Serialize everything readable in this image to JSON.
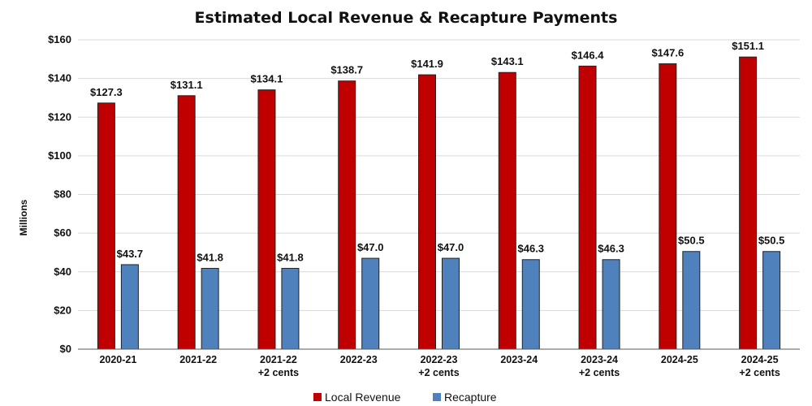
{
  "chart_data": {
    "type": "bar",
    "title": "Estimated Local Revenue & Recapture Payments",
    "ylabel": "Millions",
    "xlabel": "",
    "ylim": [
      0,
      160
    ],
    "ytick_step": 20,
    "ytick_labels": [
      "$0",
      "$20",
      "$40",
      "$60",
      "$80",
      "$100",
      "$120",
      "$140",
      "$160"
    ],
    "grid": true,
    "legend_position": "bottom",
    "categories": [
      [
        "2020-21"
      ],
      [
        "2021-22"
      ],
      [
        "2021-22",
        "+2 cents"
      ],
      [
        "2022-23"
      ],
      [
        "2022-23",
        "+2 cents"
      ],
      [
        "2023-24"
      ],
      [
        "2023-24",
        "+2 cents"
      ],
      [
        "2024-25"
      ],
      [
        "2024-25",
        "+2 cents"
      ]
    ],
    "series": [
      {
        "name": "Local Revenue",
        "color": "#c00000",
        "values": [
          127.3,
          131.1,
          134.1,
          138.7,
          141.9,
          143.1,
          146.4,
          147.6,
          151.1
        ],
        "labels": [
          "$127.3",
          "$131.1",
          "$134.1",
          "$138.7",
          "$141.9",
          "$143.1",
          "$146.4",
          "$147.6",
          "$151.1"
        ]
      },
      {
        "name": "Recapture",
        "color": "#4f81bd",
        "values": [
          43.7,
          41.8,
          41.8,
          47.0,
          47.0,
          46.3,
          46.3,
          50.5,
          50.5
        ],
        "labels": [
          "$43.7",
          "$41.8",
          "$41.8",
          "$47.0",
          "$47.0",
          "$46.3",
          "$46.3",
          "$50.5",
          "$50.5"
        ]
      }
    ]
  }
}
